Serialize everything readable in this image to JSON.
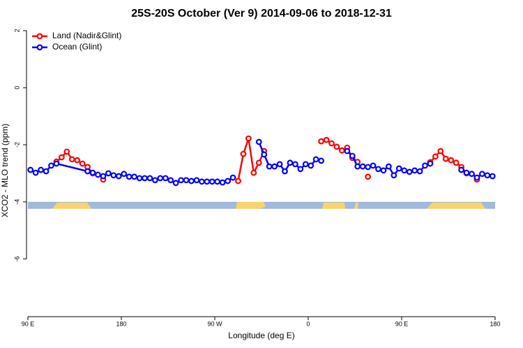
{
  "chart_data": {
    "type": "line",
    "title": "25S-20S October (Ver 9)   2014-09-06 to 2018-12-31",
    "xlabel": "Longitude (deg E)",
    "ylabel": "XCO2 - MLO trend (ppm)",
    "xlim": [
      90,
      540
    ],
    "xticks": [
      {
        "value": 90,
        "label": "90 E"
      },
      180,
      {
        "value": 270,
        "label": "90 W"
      },
      {
        "value": 360,
        "label": "0"
      },
      {
        "value": 450,
        "label": "90 E"
      },
      {
        "value": 540,
        "label": "180"
      }
    ],
    "ylim": [
      -8,
      2
    ],
    "yticks": [
      2,
      0,
      -2,
      -4,
      -6
    ],
    "legend": "topleft",
    "series": [
      {
        "name": "Land (Nadir&Glint)",
        "color": "#ff0000",
        "x": [
          117.5,
          122.5,
          127.5,
          132.5,
          137.5,
          142.5,
          147.5,
          152.5,
          null,
          162.5,
          null,
          292.5,
          297.5,
          302.5,
          307.5,
          312.5,
          317.5,
          null,
          372.5,
          377.5,
          382.5,
          387.5,
          392.5,
          397.5,
          402.5,
          407.5,
          null,
          417.5,
          null,
          477.5,
          482.5,
          487.5,
          492.5,
          497.5,
          502.5,
          507.5,
          512.5,
          null,
          522.5
        ],
        "values": [
          -2.59,
          -2.44,
          -2.24,
          -2.51,
          -2.54,
          -2.66,
          -2.78,
          -3.0,
          null,
          -3.22,
          null,
          -3.27,
          -2.32,
          -1.78,
          -2.98,
          -2.63,
          -2.22,
          null,
          -1.88,
          -1.83,
          -1.95,
          -2.07,
          -2.2,
          -2.1,
          -2.46,
          -2.6,
          null,
          -3.12,
          null,
          -2.61,
          -2.41,
          -2.22,
          -2.49,
          -2.54,
          -2.63,
          -2.78,
          -3.0,
          null,
          -3.22
        ]
      },
      {
        "name": "Ocean (Glint)",
        "color": "#0000ff",
        "x": [
          92.5,
          97.5,
          102.5,
          107.5,
          112.5,
          117.5,
          147.5,
          152.5,
          157.5,
          162.5,
          167.5,
          172.5,
          177.5,
          182.5,
          187.5,
          192.5,
          197.5,
          202.5,
          207.5,
          212.5,
          217.5,
          222.5,
          227.5,
          232.5,
          237.5,
          242.5,
          247.5,
          252.5,
          257.5,
          262.5,
          267.5,
          272.5,
          277.5,
          282.5,
          287.5,
          null,
          312.5,
          317.5,
          322.5,
          327.5,
          332.5,
          337.5,
          342.5,
          347.5,
          352.5,
          357.5,
          362.5,
          367.5,
          372.5,
          null,
          397.5,
          402.5,
          407.5,
          412.5,
          417.5,
          422.5,
          427.5,
          432.5,
          437.5,
          442.5,
          447.5,
          452.5,
          457.5,
          462.5,
          467.5,
          472.5,
          477.5,
          null,
          507.5,
          512.5,
          517.5,
          522.5,
          527.5,
          532.5,
          537.5
        ],
        "values": [
          -2.88,
          -2.98,
          -2.88,
          -2.93,
          -2.73,
          -2.66,
          -2.93,
          -2.98,
          -3.05,
          -3.1,
          -3.0,
          -3.07,
          -3.1,
          -3.02,
          -3.12,
          -3.12,
          -3.17,
          -3.17,
          -3.17,
          -3.24,
          -3.17,
          -3.17,
          -3.24,
          -3.34,
          -3.24,
          -3.24,
          -3.27,
          -3.24,
          -3.29,
          -3.29,
          -3.29,
          -3.29,
          -3.32,
          -3.27,
          -3.15,
          null,
          -1.9,
          -2.34,
          -2.76,
          -2.76,
          -2.68,
          -2.93,
          -2.63,
          -2.68,
          -2.85,
          -2.68,
          -2.73,
          -2.51,
          -2.56,
          null,
          -2.22,
          -2.39,
          -2.76,
          -2.76,
          -2.78,
          -2.73,
          -2.85,
          -2.9,
          -2.76,
          -3.07,
          -2.83,
          -2.9,
          -2.95,
          -2.9,
          -2.93,
          -2.73,
          -2.66,
          null,
          -2.88,
          -2.98,
          -3.02,
          -3.15,
          -3.02,
          -3.07,
          -3.1
        ]
      }
    ]
  }
}
